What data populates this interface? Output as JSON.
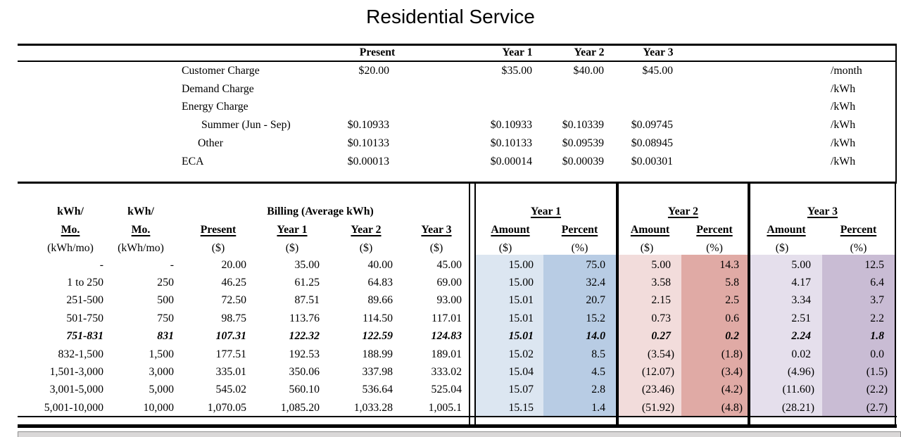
{
  "title": "Residential Service",
  "rate_table": {
    "col_headers": [
      "Present",
      "Year 1",
      "Year 2",
      "Year 3"
    ],
    "rows": [
      {
        "label": "Customer Charge",
        "indent": false,
        "present": "$20.00",
        "y1": "$35.00",
        "y2": "$40.00",
        "y3": "$45.00",
        "unit": "/month"
      },
      {
        "label": "Demand Charge",
        "indent": false,
        "present": "",
        "y1": "",
        "y2": "",
        "y3": "",
        "unit": "/kWh"
      },
      {
        "label": "Energy Charge",
        "indent": false,
        "present": "",
        "y1": "",
        "y2": "",
        "y3": "",
        "unit": "/kWh"
      },
      {
        "label": "Summer (Jun - Sep)",
        "indent": true,
        "present": "$0.10933",
        "y1": "$0.10933",
        "y2": "$0.10339",
        "y3": "$0.09745",
        "unit": "/kWh"
      },
      {
        "label": "Other",
        "indent": true,
        "present": "$0.10133",
        "y1": "$0.10133",
        "y2": "$0.09539",
        "y3": "$0.08945",
        "unit": "/kWh"
      },
      {
        "label": "ECA",
        "indent": false,
        "present": "$0.00013",
        "y1": "$0.00014",
        "y2": "$0.00039",
        "y3": "$0.00301",
        "unit": "/kWh"
      }
    ]
  },
  "billing_table": {
    "kwh_header": {
      "line1": "kWh/",
      "line2": "Mo.",
      "line3": "(kWh/mo)"
    },
    "billing_group": "Billing (Average kWh)",
    "billing_cols": [
      "Present",
      "Year 1",
      "Year 2",
      "Year 3"
    ],
    "dollar_sub": "($)",
    "percent_sub": "(%)",
    "year_groups": [
      "Year 1",
      "Year 2",
      "Year 3"
    ],
    "amount_label": "Amount",
    "percent_label": "Percent",
    "rows": [
      {
        "range": "-",
        "kwh": "-",
        "present": "20.00",
        "y1": "35.00",
        "y2": "40.00",
        "y3": "45.00",
        "y1a": "15.00",
        "y1p": "75.0",
        "y2a": "5.00",
        "y2p": "14.3",
        "y3a": "5.00",
        "y3p": "12.5",
        "em": false
      },
      {
        "range": "1 to 250",
        "kwh": "250",
        "present": "46.25",
        "y1": "61.25",
        "y2": "64.83",
        "y3": "69.00",
        "y1a": "15.00",
        "y1p": "32.4",
        "y2a": "3.58",
        "y2p": "5.8",
        "y3a": "4.17",
        "y3p": "6.4",
        "em": false
      },
      {
        "range": "251-500",
        "kwh": "500",
        "present": "72.50",
        "y1": "87.51",
        "y2": "89.66",
        "y3": "93.00",
        "y1a": "15.01",
        "y1p": "20.7",
        "y2a": "2.15",
        "y2p": "2.5",
        "y3a": "3.34",
        "y3p": "3.7",
        "em": false
      },
      {
        "range": "501-750",
        "kwh": "750",
        "present": "98.75",
        "y1": "113.76",
        "y2": "114.50",
        "y3": "117.01",
        "y1a": "15.01",
        "y1p": "15.2",
        "y2a": "0.73",
        "y2p": "0.6",
        "y3a": "2.51",
        "y3p": "2.2",
        "em": false
      },
      {
        "range": "751-831",
        "kwh": "831",
        "present": "107.31",
        "y1": "122.32",
        "y2": "122.59",
        "y3": "124.83",
        "y1a": "15.01",
        "y1p": "14.0",
        "y2a": "0.27",
        "y2p": "0.2",
        "y3a": "2.24",
        "y3p": "1.8",
        "em": true
      },
      {
        "range": "832-1,500",
        "kwh": "1,500",
        "present": "177.51",
        "y1": "192.53",
        "y2": "188.99",
        "y3": "189.01",
        "y1a": "15.02",
        "y1p": "8.5",
        "y2a": "(3.54)",
        "y2p": "(1.8)",
        "y3a": "0.02",
        "y3p": "0.0",
        "em": false
      },
      {
        "range": "1,501-3,000",
        "kwh": "3,000",
        "present": "335.01",
        "y1": "350.06",
        "y2": "337.98",
        "y3": "333.02",
        "y1a": "15.04",
        "y1p": "4.5",
        "y2a": "(12.07)",
        "y2p": "(3.4)",
        "y3a": "(4.96)",
        "y3p": "(1.5)",
        "em": false
      },
      {
        "range": "3,001-5,000",
        "kwh": "5,000",
        "present": "545.02",
        "y1": "560.10",
        "y2": "536.64",
        "y3": "525.04",
        "y1a": "15.07",
        "y1p": "2.8",
        "y2a": "(23.46)",
        "y2p": "(4.2)",
        "y3a": "(11.60)",
        "y3p": "(2.2)",
        "em": false
      },
      {
        "range": "5,001-10,000",
        "kwh": "10,000",
        "present": "1,070.05",
        "y1": "1,085.20",
        "y2": "1,033.28",
        "y3": "1,005.1",
        "y1a": "15.15",
        "y1p": "1.4",
        "y2a": "(51.92)",
        "y2p": "(4.8)",
        "y3a": "(28.21)",
        "y3p": "(2.7)",
        "em": false
      }
    ]
  },
  "colors": {
    "y1_amount": "#dce6f1",
    "y1_percent": "#b8cce4",
    "y2_amount": "#f2dcdb",
    "y2_percent": "#e0aaa5",
    "y3_amount": "#e5dfec",
    "y3_percent": "#c9bcd4"
  }
}
